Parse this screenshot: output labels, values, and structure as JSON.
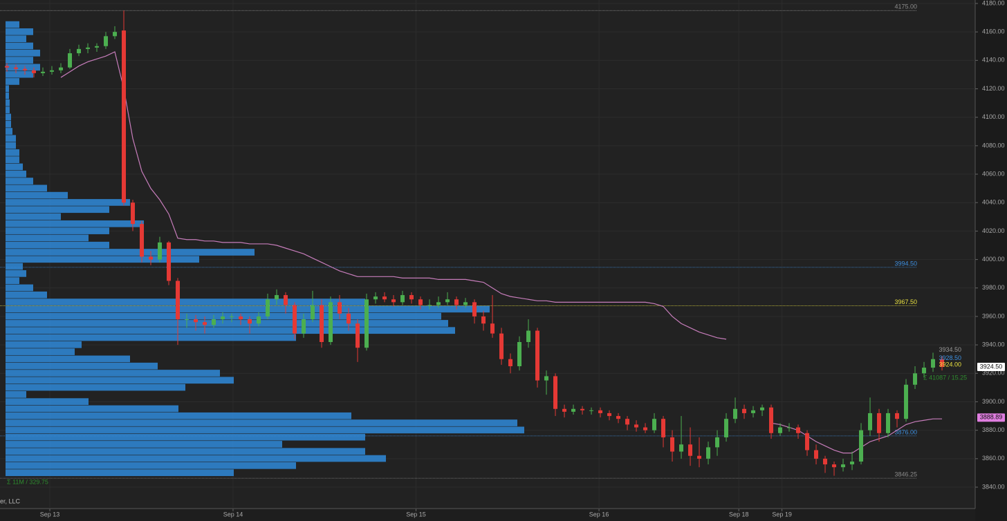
{
  "chart_data": {
    "type": "candlestick",
    "ylim": [
      3840,
      4180
    ],
    "yticks": [
      {
        "value": 3840,
        "label": "3840.00"
      },
      {
        "value": 3860,
        "label": "3860.00"
      },
      {
        "value": 3880,
        "label": "3880.00"
      },
      {
        "value": 3900,
        "label": "3900.00"
      },
      {
        "value": 3920,
        "label": "3920.00"
      },
      {
        "value": 3940,
        "label": "3940.00"
      },
      {
        "value": 3960,
        "label": "3960.00"
      },
      {
        "value": 3980,
        "label": "3980.00"
      },
      {
        "value": 4000,
        "label": "4000.00"
      },
      {
        "value": 4020,
        "label": "4020.00"
      },
      {
        "value": 4040,
        "label": "4040.00"
      },
      {
        "value": 4060,
        "label": "4060.00"
      },
      {
        "value": 4080,
        "label": "4080.00"
      },
      {
        "value": 4100,
        "label": "4100.00"
      },
      {
        "value": 4120,
        "label": "4120.00"
      },
      {
        "value": 4140,
        "label": "4140.00"
      },
      {
        "value": 4160,
        "label": "4160.00"
      },
      {
        "value": 4180,
        "label": "4180.00"
      }
    ],
    "xlim": [
      -0.77,
      107.69
    ],
    "xticks": [
      {
        "value": 4.77,
        "label": "Sep 13"
      },
      {
        "value": 25.15,
        "label": "Sep 14"
      },
      {
        "value": 45.5,
        "label": "Sep 15"
      },
      {
        "value": 65.85,
        "label": "Sep 16"
      },
      {
        "value": 81.4,
        "label": "Sep 18"
      },
      {
        "value": 86.2,
        "label": "Sep 19"
      }
    ],
    "grid": true,
    "up_color": "#4caf50",
    "down_color": "#e53935",
    "candles": [
      [
        4136,
        4138,
        4132,
        4135
      ],
      [
        4135,
        4137,
        4131,
        4134
      ],
      [
        4134,
        4136,
        4130,
        4133
      ],
      [
        4133,
        4135,
        4128,
        4131
      ],
      [
        4131,
        4135,
        4129,
        4132
      ],
      [
        4132,
        4136,
        4130,
        4133
      ],
      [
        4133,
        4138,
        4131,
        4135
      ],
      [
        4135,
        4148,
        4134,
        4145
      ],
      [
        4145,
        4151,
        4143,
        4148
      ],
      [
        4148,
        4152,
        4145,
        4149
      ],
      [
        4149,
        4152,
        4146,
        4150
      ],
      [
        4150,
        4160,
        4148,
        4157
      ],
      [
        4157,
        4164,
        4155,
        4160
      ],
      [
        4161,
        4175,
        4038,
        4040
      ],
      [
        4040,
        4042,
        4020,
        4025
      ],
      [
        4025,
        4027,
        3998,
        4002
      ],
      [
        4002,
        4006,
        3996,
        4000
      ],
      [
        4000,
        4016,
        3998,
        4012
      ],
      [
        4012,
        4013,
        3982,
        3985
      ],
      [
        3985,
        3987,
        3940,
        3958
      ],
      [
        3958,
        3962,
        3952,
        3958
      ],
      [
        3958,
        3961,
        3950,
        3956
      ],
      [
        3956,
        3960,
        3948,
        3954
      ],
      [
        3954,
        3961,
        3952,
        3958
      ],
      [
        3958,
        3963,
        3955,
        3960
      ],
      [
        3960,
        3962,
        3956,
        3960
      ],
      [
        3960,
        3962,
        3954,
        3958
      ],
      [
        3958,
        3960,
        3948,
        3955
      ],
      [
        3955,
        3963,
        3953,
        3960
      ],
      [
        3960,
        3976,
        3958,
        3972
      ],
      [
        3972,
        3979,
        3968,
        3975
      ],
      [
        3975,
        3977,
        3962,
        3968
      ],
      [
        3968,
        3970,
        3944,
        3948
      ],
      [
        3948,
        3962,
        3945,
        3958
      ],
      [
        3958,
        3978,
        3956,
        3968
      ],
      [
        3968,
        3972,
        3938,
        3942
      ],
      [
        3942,
        3974,
        3940,
        3970
      ],
      [
        3970,
        3975,
        3958,
        3962
      ],
      [
        3962,
        3966,
        3950,
        3955
      ],
      [
        3955,
        3958,
        3928,
        3938
      ],
      [
        3938,
        3976,
        3936,
        3972
      ],
      [
        3972,
        3977,
        3969,
        3974
      ],
      [
        3974,
        3977,
        3970,
        3972
      ],
      [
        3972,
        3975,
        3967,
        3970
      ],
      [
        3970,
        3978,
        3968,
        3975
      ],
      [
        3975,
        3977,
        3969,
        3972
      ],
      [
        3972,
        3974,
        3965,
        3968
      ],
      [
        3968,
        3972,
        3965,
        3968
      ],
      [
        3968,
        3974,
        3966,
        3970
      ],
      [
        3970,
        3977,
        3968,
        3972
      ],
      [
        3972,
        3974,
        3965,
        3968
      ],
      [
        3968,
        3973,
        3966,
        3970
      ],
      [
        3970,
        3972,
        3955,
        3960
      ],
      [
        3960,
        3964,
        3950,
        3955
      ],
      [
        3955,
        3975,
        3945,
        3948
      ],
      [
        3948,
        3952,
        3926,
        3930
      ],
      [
        3930,
        3934,
        3920,
        3925
      ],
      [
        3925,
        3946,
        3922,
        3942
      ],
      [
        3942,
        3958,
        3938,
        3950
      ],
      [
        3950,
        3952,
        3910,
        3915
      ],
      [
        3915,
        3922,
        3905,
        3918
      ],
      [
        3918,
        3920,
        3890,
        3895
      ],
      [
        3895,
        3898,
        3889,
        3893
      ],
      [
        3893,
        3898,
        3891,
        3895
      ],
      [
        3895,
        3897,
        3891,
        3894
      ],
      [
        3894,
        3896,
        3891,
        3894
      ],
      [
        3894,
        3896,
        3889,
        3892
      ],
      [
        3892,
        3894,
        3887,
        3890
      ],
      [
        3890,
        3892,
        3885,
        3888
      ],
      [
        3888,
        3890,
        3880,
        3884
      ],
      [
        3884,
        3887,
        3879,
        3882
      ],
      [
        3882,
        3885,
        3878,
        3880
      ],
      [
        3880,
        3892,
        3878,
        3888
      ],
      [
        3888,
        3890,
        3868,
        3875
      ],
      [
        3875,
        3880,
        3858,
        3865
      ],
      [
        3865,
        3890,
        3860,
        3870
      ],
      [
        3870,
        3882,
        3855,
        3862
      ],
      [
        3862,
        3875,
        3854,
        3860
      ],
      [
        3860,
        3872,
        3856,
        3868
      ],
      [
        3868,
        3880,
        3862,
        3875
      ],
      [
        3875,
        3892,
        3872,
        3888
      ],
      [
        3888,
        3903,
        3885,
        3895
      ],
      [
        3895,
        3898,
        3888,
        3892
      ],
      [
        3892,
        3897,
        3889,
        3894
      ],
      [
        3894,
        3898,
        3890,
        3896
      ],
      [
        3896,
        3898,
        3874,
        3878
      ],
      [
        3878,
        3885,
        3876,
        3882
      ],
      [
        3882,
        3885,
        3879,
        3882
      ],
      [
        3882,
        3884,
        3874,
        3878
      ],
      [
        3878,
        3880,
        3862,
        3866
      ],
      [
        3866,
        3870,
        3856,
        3860
      ],
      [
        3860,
        3862,
        3850,
        3856
      ],
      [
        3856,
        3858,
        3848,
        3854
      ],
      [
        3854,
        3860,
        3851,
        3856
      ],
      [
        3856,
        3865,
        3852,
        3858
      ],
      [
        3858,
        3885,
        3856,
        3880
      ],
      [
        3880,
        3903,
        3876,
        3892
      ],
      [
        3892,
        3895,
        3872,
        3878
      ],
      [
        3878,
        3895,
        3875,
        3892
      ],
      [
        3892,
        3894,
        3882,
        3888
      ],
      [
        3888,
        3916,
        3886,
        3912
      ],
      [
        3912,
        3925,
        3909,
        3920
      ],
      [
        3920,
        3928,
        3917,
        3924
      ],
      [
        3924,
        3934.5,
        3921,
        3930
      ],
      [
        3930,
        3932,
        3922,
        3924.5
      ]
    ],
    "vwap": {
      "color": "#c77dbb",
      "values": [
        null,
        null,
        null,
        null,
        null,
        null,
        4128,
        4132,
        4136,
        4139,
        4141,
        4143,
        4146,
        4120,
        4085,
        4062,
        4050,
        4042,
        4032,
        4015,
        4014,
        4014,
        4013,
        4013,
        4012,
        4012,
        4012,
        4011,
        4011,
        4011,
        4010,
        4008,
        4006,
        4004,
        4001,
        3998,
        3995,
        3992,
        3990,
        3988,
        3988,
        3988,
        3988,
        3988,
        3987,
        3987,
        3987,
        3987,
        3986,
        3986,
        3986,
        3986,
        3985,
        3984,
        3980,
        3976,
        3974,
        3973,
        3972,
        3971,
        3971,
        3970,
        3970,
        3970,
        3970,
        3970,
        3970,
        3970,
        3970,
        3970,
        3970,
        3970,
        3969,
        3967,
        3960,
        3955,
        3952,
        3949,
        3947,
        3945,
        3944,
        null,
        null,
        null,
        null,
        3885,
        3884,
        3882,
        3880,
        3876,
        3872,
        3869,
        3866,
        3864,
        3864,
        3868,
        3872,
        3874,
        3876,
        3880,
        3884,
        3886,
        3887,
        3888,
        3888
      ]
    },
    "profile": {
      "color": "#2f8ee0",
      "prices": [
        3850,
        3855,
        3860,
        3865,
        3870,
        3875,
        3880,
        3885,
        3890,
        3895,
        3900,
        3905,
        3910,
        3915,
        3920,
        3925,
        3930,
        3935,
        3940,
        3945,
        3950,
        3955,
        3960,
        3965,
        3970,
        3975,
        3980,
        3985,
        3990,
        3995,
        4000,
        4005,
        4010,
        4015,
        4020,
        4025,
        4030,
        4035,
        4040,
        4045,
        4050,
        4055,
        4060,
        4065,
        4070,
        4075,
        4080,
        4085,
        4090,
        4095,
        4100,
        4105,
        4110,
        4115,
        4120,
        4125,
        4130,
        4135,
        4140,
        4145,
        4150,
        4155,
        4160,
        4165
      ],
      "volumes": [
        330,
        420,
        550,
        520,
        400,
        520,
        750,
        740,
        500,
        250,
        120,
        30,
        260,
        330,
        310,
        220,
        180,
        100,
        110,
        420,
        650,
        640,
        630,
        700,
        520,
        60,
        40,
        20,
        30,
        25,
        280,
        360,
        150,
        120,
        150,
        200,
        80,
        150,
        180,
        90,
        60,
        40,
        30,
        25,
        20,
        20,
        15,
        15,
        10,
        8,
        8,
        6,
        6,
        5,
        5,
        20,
        40,
        50,
        40,
        50,
        40,
        30,
        40,
        20
      ]
    },
    "levels": [
      {
        "value": 4175,
        "label": "4175.00",
        "color": "#8a8a8a"
      },
      {
        "value": 3994.5,
        "label": "3994.50",
        "color": "#3d8fe0"
      },
      {
        "value": 3967.5,
        "label": "3967.50",
        "color": "#e8e040"
      },
      {
        "value": 3876,
        "label": "3876.00",
        "color": "#3d8fe0"
      },
      {
        "value": 3846.25,
        "label": "3846.25",
        "color": "#8a8a8a"
      }
    ],
    "mini_labels": [
      {
        "value": 3934.5,
        "label": "3934.50",
        "color": "#999999"
      },
      {
        "value": 3928.5,
        "label": "3928.50",
        "color": "#3d8fe0"
      },
      {
        "value": 3924,
        "label": "3924.00",
        "color": "#e8e040"
      }
    ],
    "tags": [
      {
        "value": 3924.5,
        "label": "3924.50",
        "color": "#ffffff"
      },
      {
        "value": 3888.89,
        "label": "3888.89",
        "color": "#e07ee0"
      }
    ],
    "notes": [
      "Σ 11M / 329.75",
      "Σ 41087 / 15.25",
      "er, LLC"
    ]
  }
}
